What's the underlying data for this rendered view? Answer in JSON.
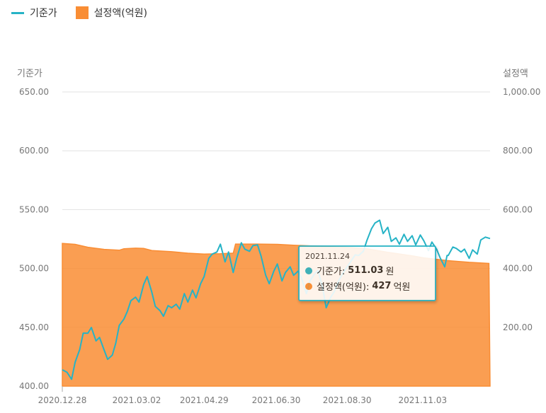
{
  "legend": [
    {
      "label": "기준가",
      "color": "#26b3c6",
      "kind": "line"
    },
    {
      "label": "설정액(억원)",
      "color": "#f98d34",
      "kind": "area"
    }
  ],
  "tooltip": {
    "date": "2021.11.24",
    "price_label": "기준가:",
    "price_value": "511.03",
    "price_unit": "원",
    "aum_label": "설정액(억원):",
    "aum_value": "427",
    "aum_unit": "억원"
  },
  "chart_data": {
    "type": "line+area",
    "title": "",
    "x_ticks": [
      "2020.12.28",
      "2021.03.02",
      "2021.04.29",
      "2021.06.30",
      "2021.08.30",
      "2021.11.03"
    ],
    "x_range": [
      "2020.12.28",
      "2021.12.31"
    ],
    "y_left": {
      "title": "기준가",
      "ylim": [
        400,
        650
      ],
      "ticks": [
        "650.00",
        "600.00",
        "550.00",
        "500.00",
        "450.00",
        "400.00"
      ]
    },
    "y_right": {
      "title": "설정액",
      "ylim": [
        0,
        1000
      ],
      "ticks": [
        "1,000.00",
        "800.00",
        "600.00",
        "400.00",
        "200.00"
      ]
    },
    "grid": true,
    "legend_position": "top-left",
    "series": [
      {
        "name": "기준가",
        "axis": "left",
        "color": "#26b3c6",
        "points": [
          [
            "2020.12.28",
            413.9
          ],
          [
            "2021.01.01",
            411.8
          ],
          [
            "2021.01.05",
            405.8
          ],
          [
            "2021.01.08",
            420.4
          ],
          [
            "2021.01.12",
            431.2
          ],
          [
            "2021.01.15",
            445.0
          ],
          [
            "2021.01.19",
            445.0
          ],
          [
            "2021.01.22",
            449.8
          ],
          [
            "2021.01.26",
            438.4
          ],
          [
            "2021.01.29",
            441.4
          ],
          [
            "2021.02.02",
            430.6
          ],
          [
            "2021.02.05",
            422.8
          ],
          [
            "2021.02.09",
            426.4
          ],
          [
            "2021.02.12",
            436.6
          ],
          [
            "2021.02.15",
            451.6
          ],
          [
            "2021.02.19",
            457.0
          ],
          [
            "2021.02.22",
            463.6
          ],
          [
            "2021.02.25",
            472.6
          ],
          [
            "2021.03.01",
            475.6
          ],
          [
            "2021.03.04",
            471.4
          ],
          [
            "2021.03.08",
            486.4
          ],
          [
            "2021.03.11",
            493.0
          ],
          [
            "2021.03.15",
            479.8
          ],
          [
            "2021.03.18",
            467.8
          ],
          [
            "2021.03.22",
            464.2
          ],
          [
            "2021.03.25",
            459.4
          ],
          [
            "2021.03.29",
            468.4
          ],
          [
            "2021.04.01",
            466.6
          ],
          [
            "2021.04.05",
            469.6
          ],
          [
            "2021.04.08",
            465.4
          ],
          [
            "2021.04.12",
            478.6
          ],
          [
            "2021.04.15",
            471.4
          ],
          [
            "2021.04.19",
            481.6
          ],
          [
            "2021.04.22",
            475.0
          ],
          [
            "2021.04.26",
            487.0
          ],
          [
            "2021.04.29",
            493.0
          ],
          [
            "2021.05.03",
            508.6
          ],
          [
            "2021.05.06",
            512.2
          ],
          [
            "2021.05.10",
            514.0
          ],
          [
            "2021.05.13",
            520.6
          ],
          [
            "2021.05.17",
            505.6
          ],
          [
            "2021.05.20",
            514.0
          ],
          [
            "2021.05.24",
            496.6
          ],
          [
            "2021.05.27",
            508.6
          ],
          [
            "2021.05.31",
            521.8
          ],
          [
            "2021.06.03",
            516.4
          ],
          [
            "2021.06.07",
            514.6
          ],
          [
            "2021.06.10",
            519.4
          ],
          [
            "2021.06.14",
            520.0
          ],
          [
            "2021.06.17",
            510.4
          ],
          [
            "2021.06.21",
            494.2
          ],
          [
            "2021.06.24",
            487.0
          ],
          [
            "2021.06.28",
            497.8
          ],
          [
            "2021.07.01",
            503.8
          ],
          [
            "2021.07.05",
            489.4
          ],
          [
            "2021.07.08",
            496.6
          ],
          [
            "2021.07.12",
            501.4
          ],
          [
            "2021.07.15",
            494.2
          ],
          [
            "2021.07.19",
            497.8
          ],
          [
            "2021.07.22",
            491.2
          ],
          [
            "2021.07.26",
            478.6
          ],
          [
            "2021.07.29",
            489.4
          ],
          [
            "2021.08.02",
            495.4
          ],
          [
            "2021.08.05",
            498.4
          ],
          [
            "2021.08.09",
            483.4
          ],
          [
            "2021.08.12",
            466.6
          ],
          [
            "2021.08.16",
            475.6
          ],
          [
            "2021.08.19",
            480.4
          ],
          [
            "2021.08.23",
            490.0
          ],
          [
            "2021.08.26",
            495.4
          ],
          [
            "2021.08.30",
            501.4
          ],
          [
            "2021.09.02",
            505.6
          ],
          [
            "2021.09.06",
            511.6
          ],
          [
            "2021.09.09",
            511.0
          ],
          [
            "2021.09.13",
            514.6
          ],
          [
            "2021.09.16",
            523.6
          ],
          [
            "2021.09.20",
            533.8
          ],
          [
            "2021.09.23",
            538.6
          ],
          [
            "2021.09.27",
            541.0
          ],
          [
            "2021.09.30",
            529.6
          ],
          [
            "2021.10.04",
            535.0
          ],
          [
            "2021.10.07",
            523.0
          ],
          [
            "2021.10.11",
            526.0
          ],
          [
            "2021.10.14",
            520.6
          ],
          [
            "2021.10.18",
            529.0
          ],
          [
            "2021.10.21",
            523.0
          ],
          [
            "2021.10.25",
            527.8
          ],
          [
            "2021.10.28",
            520.0
          ],
          [
            "2021.11.01",
            528.4
          ],
          [
            "2021.11.04",
            523.6
          ],
          [
            "2021.11.08",
            515.2
          ],
          [
            "2021.11.11",
            522.4
          ],
          [
            "2021.11.15",
            516.4
          ],
          [
            "2021.11.18",
            509.2
          ],
          [
            "2021.11.22",
            501.4
          ],
          [
            "2021.11.24",
            511.03
          ],
          [
            "2021.11.25",
            511.0
          ],
          [
            "2021.11.29",
            518.2
          ],
          [
            "2021.12.02",
            517.0
          ],
          [
            "2021.12.06",
            514.0
          ],
          [
            "2021.12.09",
            516.4
          ],
          [
            "2021.12.13",
            508.6
          ],
          [
            "2021.12.16",
            515.8
          ],
          [
            "2021.12.20",
            512.2
          ],
          [
            "2021.12.23",
            524.2
          ],
          [
            "2021.12.27",
            526.6
          ],
          [
            "2021.12.31",
            525.4
          ]
        ]
      },
      {
        "name": "설정액(억원)",
        "axis": "right",
        "color": "#f98d34",
        "points": [
          [
            "2020.12.28",
            485
          ],
          [
            "2021.01.08",
            482
          ],
          [
            "2021.01.19",
            472
          ],
          [
            "2021.02.02",
            465
          ],
          [
            "2021.02.15",
            462
          ],
          [
            "2021.02.19",
            467
          ],
          [
            "2021.03.01",
            469
          ],
          [
            "2021.03.08",
            468
          ],
          [
            "2021.03.15",
            461
          ],
          [
            "2021.04.01",
            457
          ],
          [
            "2021.04.15",
            452
          ],
          [
            "2021.04.29",
            449
          ],
          [
            "2021.05.13",
            450
          ],
          [
            "2021.05.24",
            452
          ],
          [
            "2021.05.26",
            483
          ],
          [
            "2021.06.14",
            483
          ],
          [
            "2021.07.01",
            482
          ],
          [
            "2021.07.15",
            479
          ],
          [
            "2021.08.02",
            476
          ],
          [
            "2021.08.30",
            472
          ],
          [
            "2021.09.16",
            467
          ],
          [
            "2021.10.04",
            455
          ],
          [
            "2021.10.25",
            443
          ],
          [
            "2021.11.04",
            436
          ],
          [
            "2021.11.24",
            427
          ],
          [
            "2021.12.13",
            421
          ],
          [
            "2021.12.30",
            417
          ],
          [
            "2021.12.31",
            0
          ]
        ]
      }
    ]
  }
}
